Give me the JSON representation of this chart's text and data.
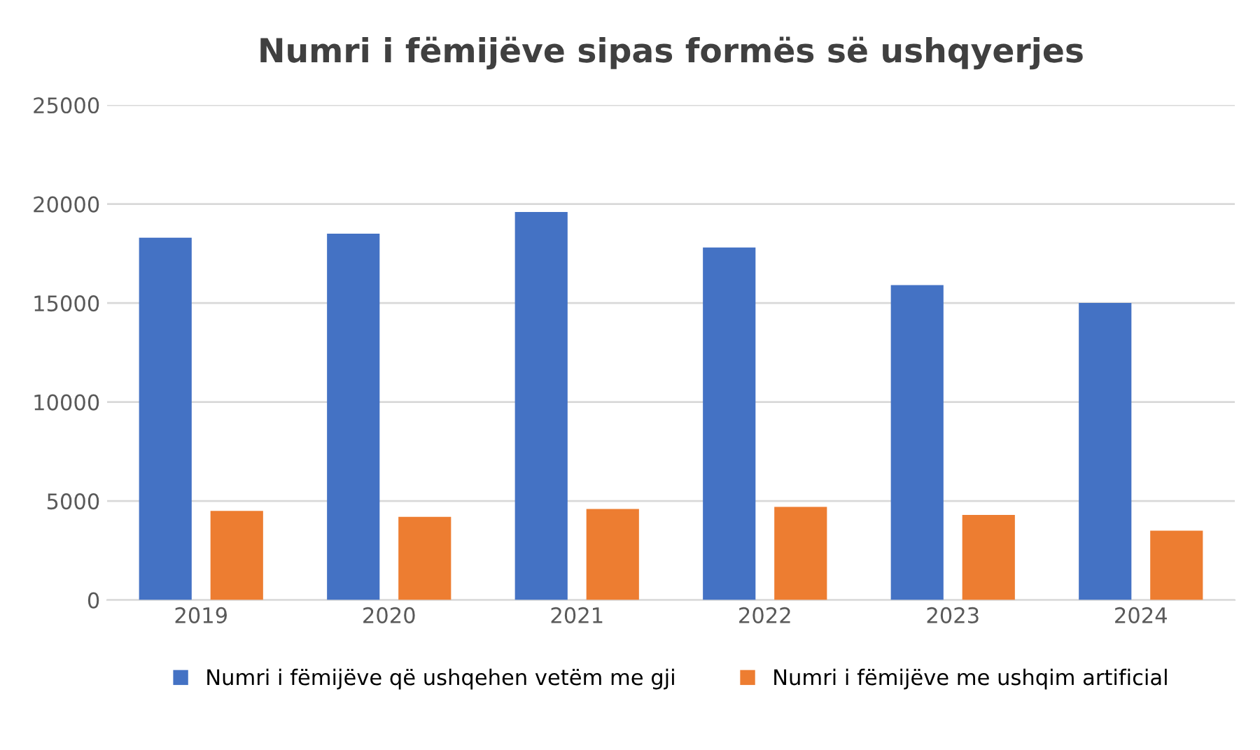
{
  "chart_data": {
    "type": "bar",
    "title": "Numri i fëmijëve sipas formës së ushqyerjes",
    "categories": [
      "2019",
      "2020",
      "2021",
      "2022",
      "2023",
      "2024"
    ],
    "series": [
      {
        "name": "Numri i fëmijëve që ushqehen vetëm me gji",
        "color": "#4472c4",
        "values": [
          18300,
          18500,
          19600,
          17800,
          15900,
          15000
        ]
      },
      {
        "name": "Numri i fëmijëve me ushqim artificial",
        "color": "#ed7d31",
        "values": [
          4500,
          4200,
          4600,
          4700,
          4300,
          3500
        ]
      }
    ],
    "ylim": [
      0,
      25000
    ],
    "yticks": [
      0,
      5000,
      10000,
      15000,
      20000,
      25000
    ],
    "grid": "y",
    "legend": "bottom"
  }
}
